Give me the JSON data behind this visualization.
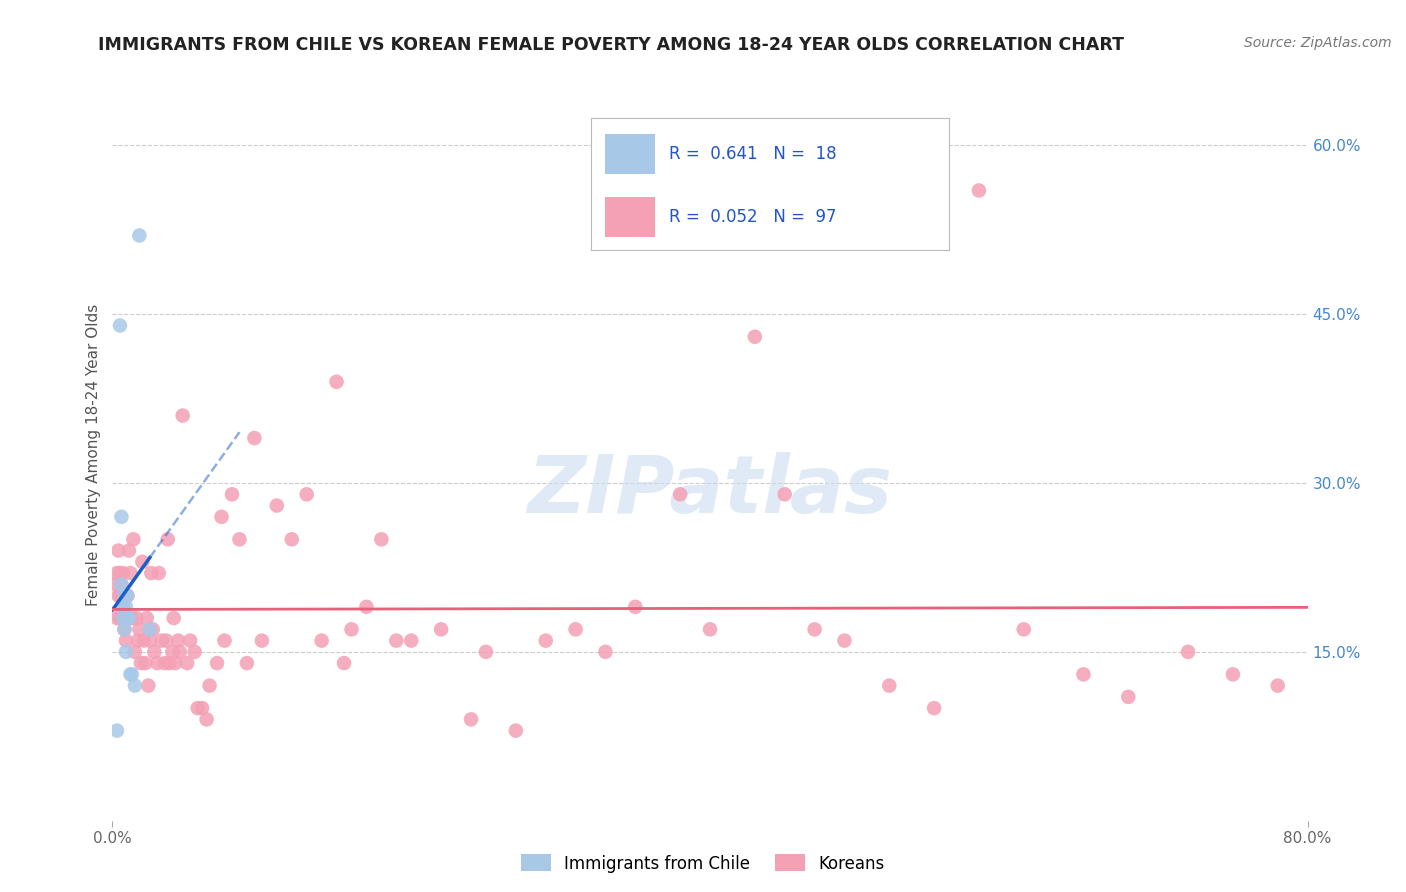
{
  "title": "IMMIGRANTS FROM CHILE VS KOREAN FEMALE POVERTY AMONG 18-24 YEAR OLDS CORRELATION CHART",
  "source": "Source: ZipAtlas.com",
  "ylabel": "Female Poverty Among 18-24 Year Olds",
  "xlim": [
    0.0,
    0.8
  ],
  "ylim": [
    0.0,
    0.65
  ],
  "y_ticks_right": [
    0.15,
    0.3,
    0.45,
    0.6
  ],
  "y_tick_labels_right": [
    "15.0%",
    "30.0%",
    "45.0%",
    "60.0%"
  ],
  "chile_color": "#a8c8e8",
  "korea_color": "#f4a0b5",
  "chile_line_color": "#1a5fc8",
  "korea_line_color": "#e8607a",
  "watermark_text": "ZIPatlas",
  "watermark_color": "#ccddf0",
  "legend_R_chile": "0.641",
  "legend_N_chile": "18",
  "legend_R_korea": "0.052",
  "legend_N_korea": "97",
  "legend_text_color": "#2255cc",
  "title_color": "#222222",
  "source_color": "#777777",
  "ylabel_color": "#555555",
  "tick_color": "#4488cc",
  "grid_color": "#cccccc",
  "chile_x": [
    0.003,
    0.005,
    0.006,
    0.006,
    0.007,
    0.007,
    0.008,
    0.008,
    0.009,
    0.009,
    0.01,
    0.01,
    0.011,
    0.012,
    0.013,
    0.015,
    0.018,
    0.025
  ],
  "chile_y": [
    0.08,
    0.44,
    0.27,
    0.21,
    0.19,
    0.18,
    0.2,
    0.17,
    0.19,
    0.15,
    0.18,
    0.2,
    0.18,
    0.13,
    0.13,
    0.12,
    0.52,
    0.17
  ],
  "korea_x": [
    0.002,
    0.003,
    0.003,
    0.004,
    0.004,
    0.005,
    0.005,
    0.005,
    0.006,
    0.006,
    0.006,
    0.007,
    0.007,
    0.008,
    0.008,
    0.009,
    0.01,
    0.011,
    0.012,
    0.013,
    0.014,
    0.015,
    0.016,
    0.017,
    0.018,
    0.019,
    0.02,
    0.021,
    0.022,
    0.023,
    0.024,
    0.025,
    0.026,
    0.027,
    0.028,
    0.03,
    0.031,
    0.033,
    0.035,
    0.036,
    0.037,
    0.038,
    0.04,
    0.041,
    0.042,
    0.044,
    0.045,
    0.047,
    0.05,
    0.052,
    0.055,
    0.057,
    0.06,
    0.063,
    0.065,
    0.07,
    0.073,
    0.075,
    0.08,
    0.085,
    0.09,
    0.095,
    0.1,
    0.11,
    0.12,
    0.13,
    0.14,
    0.15,
    0.155,
    0.16,
    0.17,
    0.18,
    0.19,
    0.2,
    0.22,
    0.24,
    0.25,
    0.27,
    0.29,
    0.31,
    0.33,
    0.35,
    0.38,
    0.4,
    0.43,
    0.45,
    0.47,
    0.49,
    0.52,
    0.55,
    0.58,
    0.61,
    0.65,
    0.68,
    0.72,
    0.75,
    0.78
  ],
  "korea_y": [
    0.21,
    0.18,
    0.22,
    0.2,
    0.24,
    0.2,
    0.22,
    0.18,
    0.21,
    0.18,
    0.2,
    0.22,
    0.19,
    0.18,
    0.17,
    0.16,
    0.2,
    0.24,
    0.22,
    0.18,
    0.25,
    0.15,
    0.18,
    0.16,
    0.17,
    0.14,
    0.23,
    0.16,
    0.14,
    0.18,
    0.12,
    0.16,
    0.22,
    0.17,
    0.15,
    0.14,
    0.22,
    0.16,
    0.14,
    0.16,
    0.25,
    0.14,
    0.15,
    0.18,
    0.14,
    0.16,
    0.15,
    0.36,
    0.14,
    0.16,
    0.15,
    0.1,
    0.1,
    0.09,
    0.12,
    0.14,
    0.27,
    0.16,
    0.29,
    0.25,
    0.14,
    0.34,
    0.16,
    0.28,
    0.25,
    0.29,
    0.16,
    0.39,
    0.14,
    0.17,
    0.19,
    0.25,
    0.16,
    0.16,
    0.17,
    0.09,
    0.15,
    0.08,
    0.16,
    0.17,
    0.15,
    0.19,
    0.29,
    0.17,
    0.43,
    0.29,
    0.17,
    0.16,
    0.12,
    0.1,
    0.56,
    0.17,
    0.13,
    0.11,
    0.15,
    0.13,
    0.12
  ]
}
